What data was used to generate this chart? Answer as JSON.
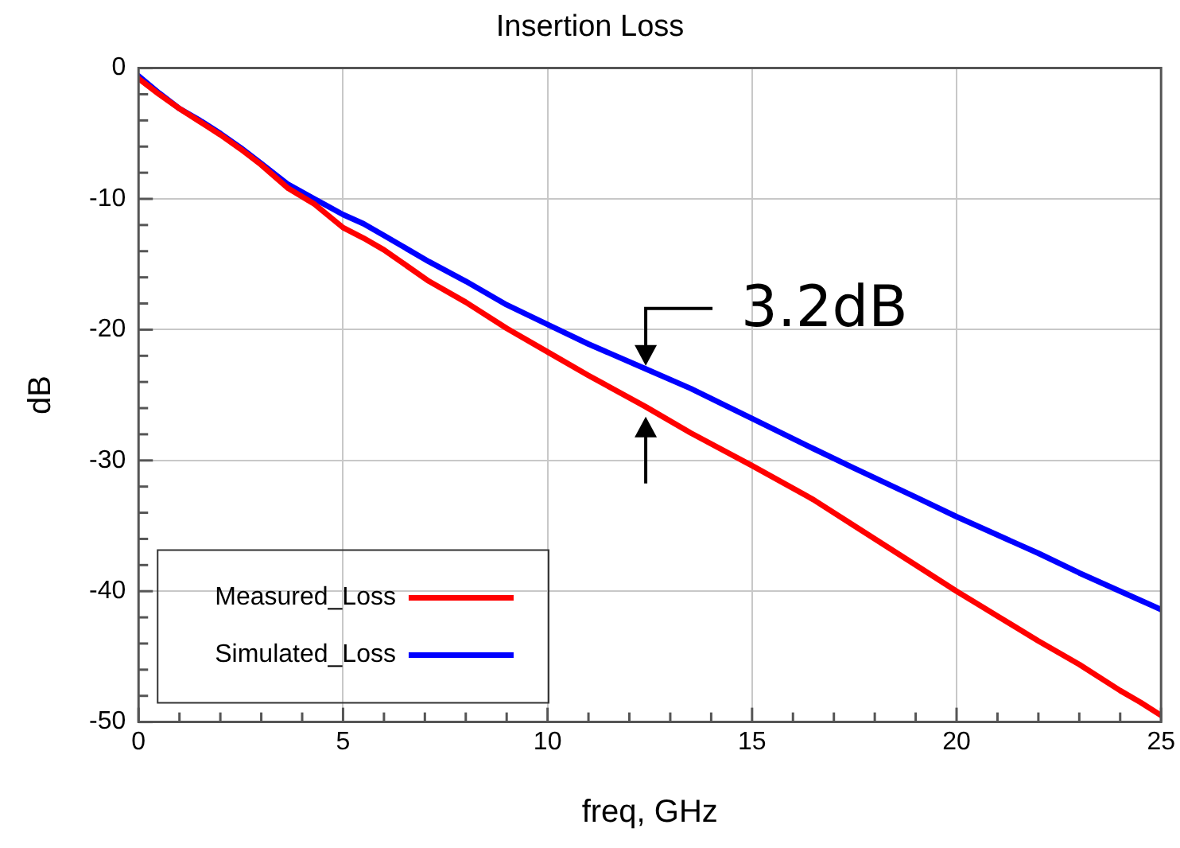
{
  "chart_data": {
    "type": "line",
    "title": "Insertion Loss",
    "xlabel": "freq, GHz",
    "ylabel": "dB",
    "x": [
      0,
      0.5,
      1,
      1.5,
      2,
      2.5,
      3,
      3.66,
      4.3,
      5,
      5.5,
      6,
      7.1,
      8,
      9,
      10,
      11,
      12.4,
      13.5,
      15,
      16.5,
      17.5,
      19,
      20,
      21,
      22,
      23,
      24,
      24.5,
      25
    ],
    "series": [
      {
        "name": "Measured_Loss",
        "color": "#ff0000",
        "values": [
          -0.8,
          -2.0,
          -3.1,
          -4.1,
          -5.1,
          -6.2,
          -7.4,
          -9.2,
          -10.4,
          -12.2,
          -13.0,
          -13.9,
          -16.3,
          -17.9,
          -19.9,
          -21.7,
          -23.5,
          -25.9,
          -27.9,
          -30.4,
          -33.0,
          -35.0,
          -38.0,
          -40.0,
          -41.9,
          -43.8,
          -45.6,
          -47.6,
          -48.5,
          -49.5
        ]
      },
      {
        "name": "Simulated_Loss",
        "color": "#0000ff",
        "values": [
          -0.6,
          -1.9,
          -3.1,
          -4.0,
          -5.0,
          -6.1,
          -7.3,
          -8.9,
          -10.0,
          -11.2,
          -11.9,
          -12.8,
          -14.8,
          -16.3,
          -18.1,
          -19.6,
          -21.1,
          -23.0,
          -24.5,
          -26.8,
          -29.1,
          -30.6,
          -32.8,
          -34.3,
          -35.7,
          -37.1,
          -38.6,
          -40.0,
          -40.7,
          -41.4
        ]
      }
    ],
    "xlim": [
      0,
      25
    ],
    "xticks": [
      0,
      {
        "value": 1,
        "label": null
      },
      {
        "value": 2,
        "label": null
      },
      {
        "value": 3,
        "label": null
      },
      {
        "value": 4,
        "label": null
      },
      5,
      {
        "value": 6,
        "label": null
      },
      {
        "value": 7,
        "label": null
      },
      {
        "value": 8,
        "label": null
      },
      {
        "value": 9,
        "label": null
      },
      10,
      {
        "value": 11,
        "label": null
      },
      {
        "value": 12,
        "label": null
      },
      {
        "value": 13,
        "label": null
      },
      {
        "value": 14,
        "label": null
      },
      15,
      {
        "value": 16,
        "label": null
      },
      {
        "value": 17,
        "label": null
      },
      {
        "value": 18,
        "label": null
      },
      {
        "value": 19,
        "label": null
      },
      20,
      {
        "value": 21,
        "label": null
      },
      {
        "value": 22,
        "label": null
      },
      {
        "value": 23,
        "label": null
      },
      {
        "value": 24,
        "label": null
      },
      25
    ],
    "ylim": [
      -50,
      0
    ],
    "yticks": [
      -50,
      {
        "value": -48,
        "label": null
      },
      {
        "value": -46,
        "label": null
      },
      {
        "value": -44,
        "label": null
      },
      {
        "value": -42,
        "label": null
      },
      -40,
      {
        "value": -38,
        "label": null
      },
      {
        "value": -36,
        "label": null
      },
      {
        "value": -34,
        "label": null
      },
      {
        "value": -32,
        "label": null
      },
      -30,
      {
        "value": -28,
        "label": null
      },
      {
        "value": -26,
        "label": null
      },
      {
        "value": -24,
        "label": null
      },
      {
        "value": -22,
        "label": null
      },
      -20,
      {
        "value": -18,
        "label": null
      },
      {
        "value": -16,
        "label": null
      },
      {
        "value": -14,
        "label": null
      },
      {
        "value": -12,
        "label": null
      },
      -10,
      {
        "value": -8,
        "label": null
      },
      {
        "value": -6,
        "label": null
      },
      {
        "value": -4,
        "label": null
      },
      {
        "value": -2,
        "label": null
      },
      0
    ],
    "annotations": [
      {
        "text": "3.2dB",
        "x": 12.4,
        "y": -23.0
      }
    ],
    "grid": true,
    "legend": "bottom left",
    "marker": "none",
    "line_style": "solid"
  }
}
